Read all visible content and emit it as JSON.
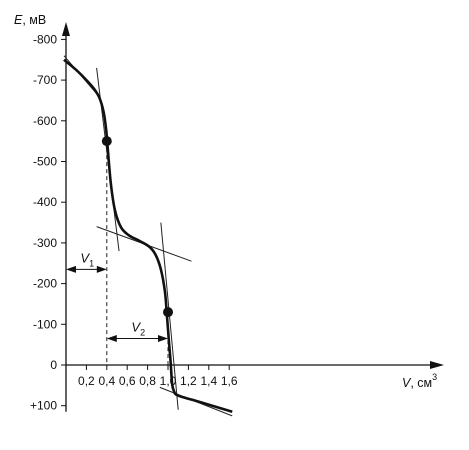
{
  "chart_data": {
    "type": "line",
    "title": "",
    "x_axis": {
      "label": "V",
      "unit": "см",
      "unit_exponent": "3",
      "range": [
        0,
        1.8
      ],
      "ticks": [
        {
          "value": 0.2,
          "label": "0,2"
        },
        {
          "value": 0.4,
          "label": "0,4"
        },
        {
          "value": 0.6,
          "label": "0,6"
        },
        {
          "value": 0.8,
          "label": "0,8"
        },
        {
          "value": 1.0,
          "label": "1,0"
        },
        {
          "value": 1.2,
          "label": "1,2"
        },
        {
          "value": 1.4,
          "label": "1,4"
        },
        {
          "value": 1.6,
          "label": "1,6"
        }
      ]
    },
    "y_axis": {
      "label": "E",
      "unit": ", мВ",
      "range": [
        -100,
        800
      ],
      "inverted_sign_display": true,
      "ticks": [
        {
          "value": 800,
          "label": "-800"
        },
        {
          "value": 700,
          "label": "-700"
        },
        {
          "value": 600,
          "label": "-600"
        },
        {
          "value": 500,
          "label": "-500"
        },
        {
          "value": 400,
          "label": "-400"
        },
        {
          "value": 300,
          "label": "-300"
        },
        {
          "value": 200,
          "label": "-200"
        },
        {
          "value": 100,
          "label": "-100"
        },
        {
          "value": 0,
          "label": "0"
        },
        {
          "value": -100,
          "label": "+100"
        }
      ]
    },
    "series": [
      {
        "x": [
          -0.02,
          0.1,
          0.2,
          0.28,
          0.33,
          0.37,
          0.395,
          0.41,
          0.44,
          0.48,
          0.54,
          0.62,
          0.72,
          0.82,
          0.88,
          0.93,
          0.97,
          0.99,
          1.01,
          1.025,
          1.04,
          1.06,
          1.1,
          1.3,
          1.5,
          1.63
        ],
        "y": [
          750,
          725,
          700,
          677,
          655,
          620,
          575,
          530,
          445,
          380,
          338,
          318,
          305,
          290,
          270,
          235,
          180,
          120,
          55,
          10,
          -45,
          -65,
          -75,
          -90,
          -105,
          -115
        ]
      }
    ],
    "tangents": [
      {
        "x": [
          -0.02,
          0.34
        ],
        "y": [
          760,
          655
        ]
      },
      {
        "x": [
          0.3,
          0.52
        ],
        "y": [
          730,
          280
        ]
      },
      {
        "x": [
          0.3,
          1.23
        ],
        "y": [
          340,
          255
        ]
      },
      {
        "x": [
          0.93,
          1.1
        ],
        "y": [
          350,
          -110
        ]
      },
      {
        "x": [
          0.92,
          1.63
        ],
        "y": [
          -55,
          -125
        ]
      }
    ],
    "equivalence_points": [
      {
        "x": 0.4,
        "y": 550
      },
      {
        "x": 1.0,
        "y": 130
      }
    ],
    "annotations": [
      {
        "label": "V",
        "subscript": "1",
        "from_x": 0.0,
        "to_x": 0.4,
        "at_y": 235
      },
      {
        "label": "V",
        "subscript": "2",
        "from_x": 0.4,
        "to_x": 1.0,
        "at_y": 65
      }
    ],
    "grid": false,
    "legend": "none"
  }
}
